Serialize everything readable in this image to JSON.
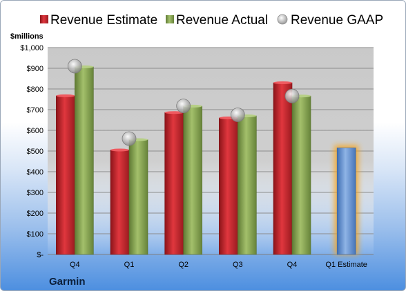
{
  "company": "Garmin",
  "chart_data": {
    "type": "bar",
    "ylabel": "$millions",
    "ylim": [
      0,
      1000
    ],
    "ytick_values": [
      0,
      100,
      200,
      300,
      400,
      500,
      600,
      700,
      800,
      900,
      1000
    ],
    "ytick_labels": [
      "$-",
      "$100",
      "$200",
      "$300",
      "$400",
      "$500",
      "$600",
      "$700",
      "$800",
      "$900",
      "$1,000"
    ],
    "categories": [
      "Q4",
      "Q1",
      "Q2",
      "Q3",
      "Q4",
      "Q1 Estimate"
    ],
    "legend_position": "top",
    "grid": true,
    "series": [
      {
        "name": "Revenue Estimate",
        "kind": "bar",
        "color": "#c0262d",
        "values": [
          767,
          505,
          686,
          660,
          830,
          null
        ]
      },
      {
        "name": "Revenue Actual",
        "kind": "bar",
        "color": "#8aa65a",
        "values": [
          907,
          555,
          717,
          670,
          766,
          null
        ]
      },
      {
        "name": "Revenue GAAP",
        "kind": "marker",
        "color": "#c8c8c8",
        "values": [
          910,
          560,
          718,
          675,
          766,
          null
        ]
      }
    ],
    "forecast": {
      "category": "Q1 Estimate",
      "value": 515,
      "color": "#5f8fd0",
      "glow": "#f5a623"
    }
  }
}
